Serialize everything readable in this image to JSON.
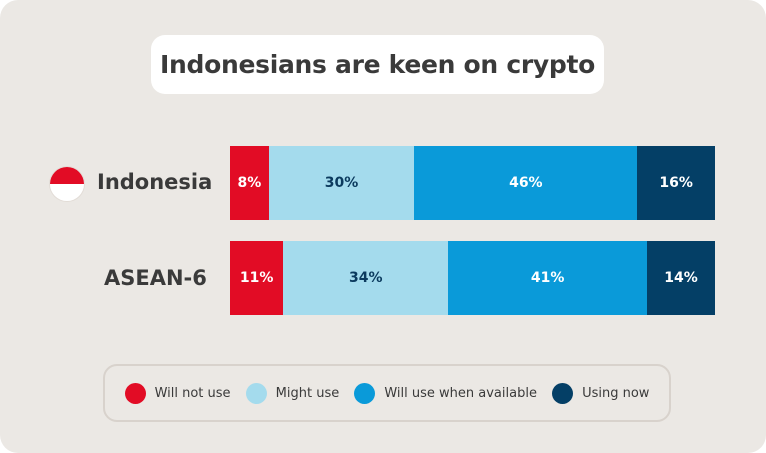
{
  "chart_data": {
    "type": "bar",
    "stacked": true,
    "orientation": "horizontal",
    "title": "Indonesians are keen on crypto",
    "categories": [
      "Indonesia",
      "ASEAN-6"
    ],
    "series": [
      {
        "name": "Will not use",
        "color": "#e20c25",
        "label_color": "#ffffff",
        "values": [
          8,
          11
        ],
        "labels": [
          "8%",
          "11%"
        ]
      },
      {
        "name": "Might use",
        "color": "#a4dbed",
        "label_color": "#0b3a5e",
        "values": [
          30,
          34
        ],
        "labels": [
          "30%",
          "34%"
        ]
      },
      {
        "name": "Will use when available",
        "color": "#0a9ad9",
        "label_color": "#ffffff",
        "values": [
          46,
          41
        ],
        "labels": [
          "46%",
          "41%"
        ]
      },
      {
        "name": "Using now",
        "color": "#043f66",
        "label_color": "#ffffff",
        "values": [
          16,
          14
        ],
        "labels": [
          "16%",
          "14%"
        ]
      }
    ],
    "legend_position": "bottom",
    "grid": false,
    "icons": [
      "indonesia-flag-icon"
    ]
  }
}
